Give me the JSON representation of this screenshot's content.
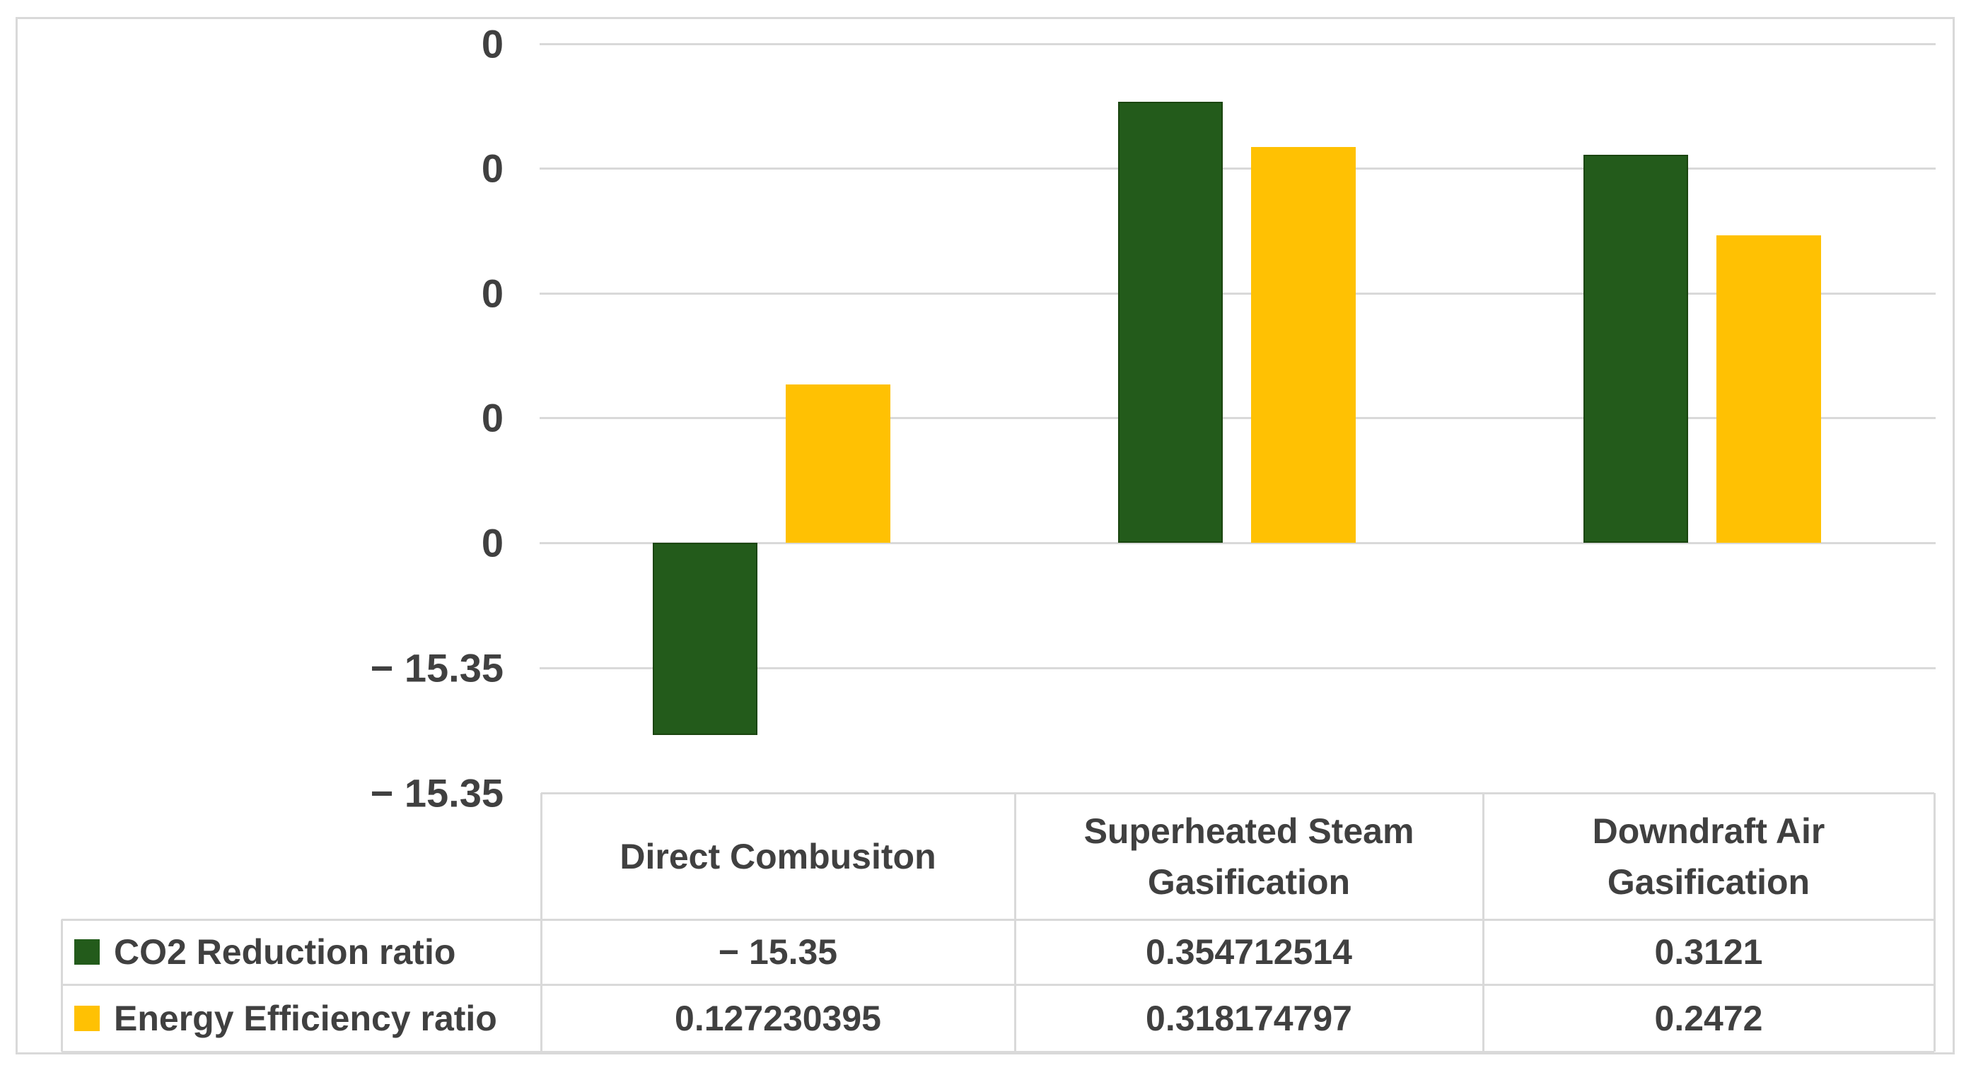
{
  "chart_data": {
    "type": "bar",
    "title": "",
    "categories": [
      "Direct Combusiton",
      "Superheated Steam Gasification",
      "Downdraft Air Gasification"
    ],
    "series": [
      {
        "name": "CO2 Reduction ratio",
        "color": "#235B1B",
        "border_color": "#1A450F",
        "values": [
          -15.35,
          0.354712514,
          0.3121
        ]
      },
      {
        "name": "Energy Efficiency ratio",
        "color": "#FFC103",
        "border_color": null,
        "values": [
          0.127230395,
          0.318174797,
          0.2472
        ]
      }
    ],
    "y_axis": {
      "tick_labels_displayed": [
        "0",
        "0",
        "0",
        "0",
        "0",
        "− 15.35",
        "− 15.35"
      ],
      "gridlines": true,
      "note": "zero baseline at 5th tick; negative bar clipped at axis minimum"
    },
    "legend_position": "table-left",
    "grid_color": "#D9D9D9",
    "text_color": "#404040"
  },
  "table": {
    "column_headers": [
      "Direct Combusiton",
      "Superheated Steam Gasification",
      "Downdraft Air Gasification"
    ],
    "rows": [
      {
        "label": "CO2 Reduction ratio",
        "swatch_color": "#235B1B",
        "values": [
          "− 15.35",
          "0.354712514",
          "0.3121"
        ]
      },
      {
        "label": "Energy Efficiency ratio",
        "swatch_color": "#FFC103",
        "values": [
          "0.127230395",
          "0.318174797",
          "0.2472"
        ]
      }
    ]
  },
  "colors": {
    "background": "#FFFFFF",
    "figure_border": "#D9D9D9",
    "grid": "#D9D9D9",
    "text": "#404040",
    "series_green": "#235B1B",
    "series_yellow": "#FFC103"
  }
}
